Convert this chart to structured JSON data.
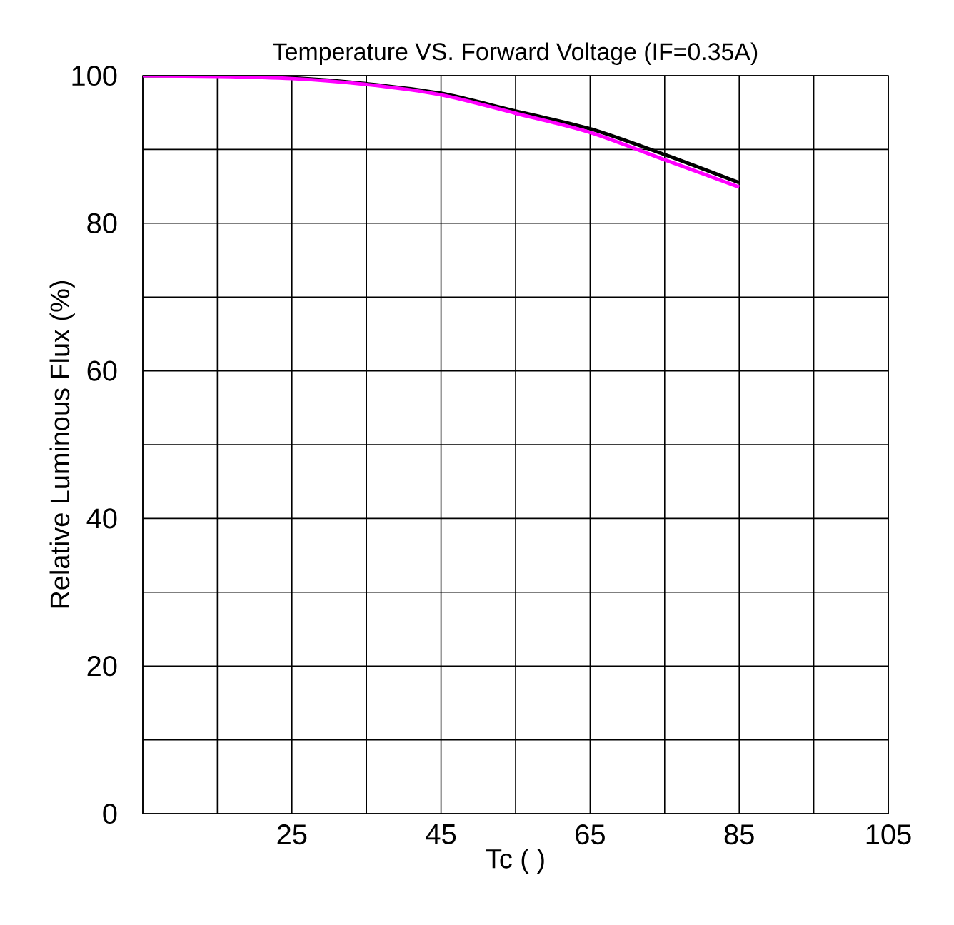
{
  "chart_data": {
    "type": "line",
    "title": "Temperature VS. Forward Voltage (IF=0.35A)",
    "xlabel": "Tc (  )",
    "ylabel": "Relative  Luminous  Flux (%)",
    "x": [
      5,
      15,
      25,
      35,
      45,
      55,
      65,
      75,
      85
    ],
    "series": [
      {
        "color": "#000000",
        "values": [
          100,
          100,
          99.7,
          98.9,
          97.6,
          95.2,
          92.8,
          89.3,
          85.5
        ]
      },
      {
        "color": "#ff00ff",
        "values": [
          100,
          99.9,
          99.6,
          98.8,
          97.4,
          94.9,
          92.3,
          88.6,
          84.9
        ]
      }
    ],
    "xlim": [
      5,
      105
    ],
    "ylim": [
      0,
      100
    ],
    "xticks": [
      {
        "value": 5,
        "label": null
      },
      {
        "value": 15,
        "label": null
      },
      25,
      {
        "value": 35,
        "label": null
      },
      45,
      {
        "value": 55,
        "label": null
      },
      65,
      {
        "value": 75,
        "label": null
      },
      85,
      {
        "value": 95,
        "label": null
      },
      105
    ],
    "yticks": [
      0,
      {
        "value": 10,
        "label": null
      },
      20,
      {
        "value": 30,
        "label": null
      },
      40,
      {
        "value": 50,
        "label": null
      },
      60,
      {
        "value": 70,
        "label": null
      },
      80,
      {
        "value": 90,
        "label": null
      },
      100
    ],
    "grid": true,
    "marker": "none",
    "line_style": "solid"
  }
}
